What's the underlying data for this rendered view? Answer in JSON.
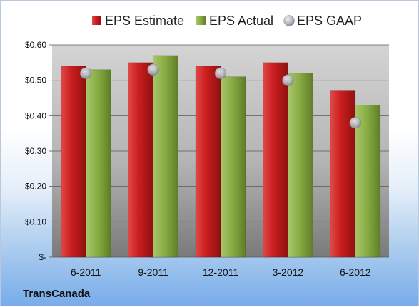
{
  "company_label": "TransCanada",
  "chart_data": {
    "type": "bar",
    "categories": [
      "6-2011",
      "9-2011",
      "12-2011",
      "3-2012",
      "6-2012"
    ],
    "series": [
      {
        "name": "EPS Estimate",
        "kind": "bar",
        "color": "#cc1f1f",
        "values": [
          0.54,
          0.55,
          0.54,
          0.55,
          0.47
        ]
      },
      {
        "name": "EPS Actual",
        "kind": "bar",
        "color": "#8aad45",
        "values": [
          0.53,
          0.57,
          0.51,
          0.52,
          0.43
        ]
      },
      {
        "name": "EPS GAAP",
        "kind": "marker",
        "color": "#a6aab2",
        "values": [
          0.52,
          0.53,
          0.52,
          0.5,
          0.38
        ]
      }
    ],
    "ylim": [
      0,
      0.6
    ],
    "yticks": [
      0,
      0.1,
      0.2,
      0.3,
      0.4,
      0.5,
      0.6
    ],
    "ytick_labels": [
      "$-",
      "$0.10",
      "$0.20",
      "$0.30",
      "$0.40",
      "$0.50",
      "$0.60"
    ],
    "grid": true,
    "legend": "top"
  }
}
